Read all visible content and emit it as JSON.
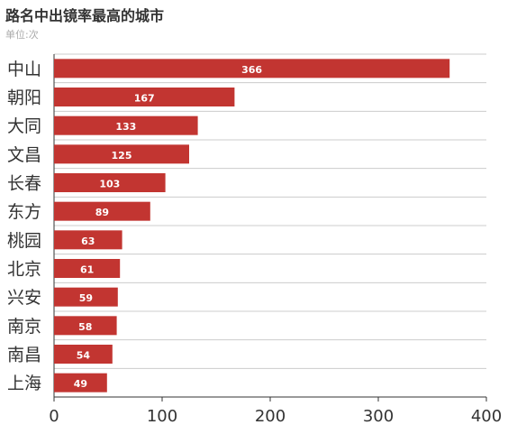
{
  "chart_data": {
    "type": "bar",
    "orientation": "horizontal",
    "title": "路名中出镜率最高的城市",
    "subtitle": "单位:次",
    "categories": [
      "中山",
      "朝阳",
      "大同",
      "文昌",
      "长春",
      "东方",
      "桃园",
      "北京",
      "兴安",
      "南京",
      "南昌",
      "上海"
    ],
    "values": [
      366,
      167,
      133,
      125,
      103,
      89,
      63,
      61,
      59,
      58,
      54,
      49
    ],
    "xlim": [
      0,
      400
    ],
    "xticks": [
      0,
      100,
      200,
      300,
      400
    ],
    "grid": true,
    "legend": "none",
    "data_labels": "inside"
  },
  "colors": {
    "bar": "#c23531",
    "label_text": "#ffffff",
    "axis": "#333333",
    "grid": "#cccccc",
    "title": "#333333",
    "subtitle": "#aaaaaa"
  }
}
